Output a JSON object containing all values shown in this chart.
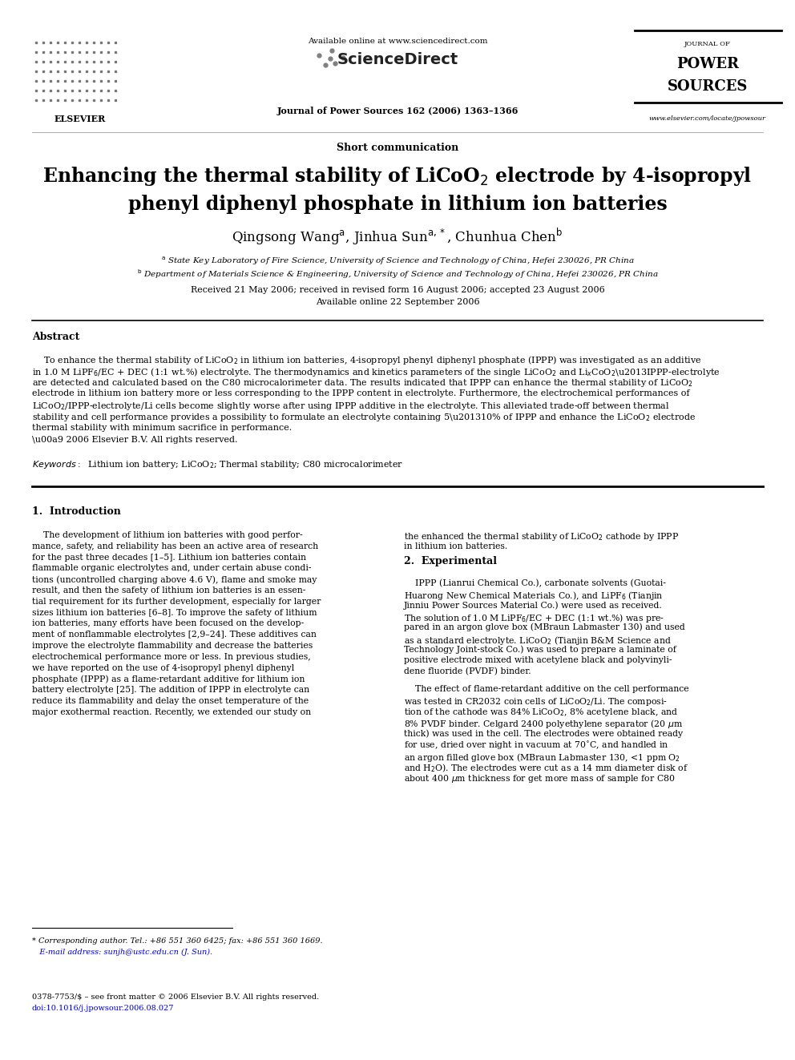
{
  "page_width": 9.92,
  "page_height": 13.23,
  "bg_color": "#ffffff",
  "available_text": "Available online at www.sciencedirect.com",
  "sciencedirect_text": "ScienceDirect",
  "journal_text": "Journal of Power Sources 162 (2006) 1363–1366",
  "website_text": "www.elsevier.com/locate/jpowsour",
  "article_type": "Short communication",
  "title_line1": "Enhancing the thermal stability of LiCoO$_2$ electrode by 4-isopropyl",
  "title_line2": "phenyl diphenyl phosphate in lithium ion batteries",
  "authors": "Qingsong Wang$^{\\mathrm{a}}$, Jinhua Sun$^{\\mathrm{a,*}}$, Chunhua Chen$^{\\mathrm{b}}$",
  "affil_a": "$^{\\mathrm{a}}$ State Key Laboratory of Fire Science, University of Science and Technology of China, Hefei 230026, PR China",
  "affil_b": "$^{\\mathrm{b}}$ Department of Materials Science & Engineering, University of Science and Technology of China, Hefei 230026, PR China",
  "received": "Received 21 May 2006; received in revised form 16 August 2006; accepted 23 August 2006",
  "available_online": "Available online 22 September 2006",
  "abstract_title": "Abstract",
  "keywords_text": "$\\it{Keywords:}$  Lithium ion battery; LiCoO$_2$; Thermal stability; C80 microcalorimeter",
  "section1_title": "1.  Introduction",
  "section2_title": "2.  Experimental",
  "footnote_line1": "* Corresponding author. Tel.: +86 551 360 6425; fax: +86 551 360 1669.",
  "footnote_line2": "   E-mail address: sunjh@ustc.edu.cn (J. Sun).",
  "footer_line1": "0378-7753/$ – see front matter © 2006 Elsevier B.V. All rights reserved.",
  "footer_line2": "doi:10.1016/j.jpowsour.2006.08.027"
}
